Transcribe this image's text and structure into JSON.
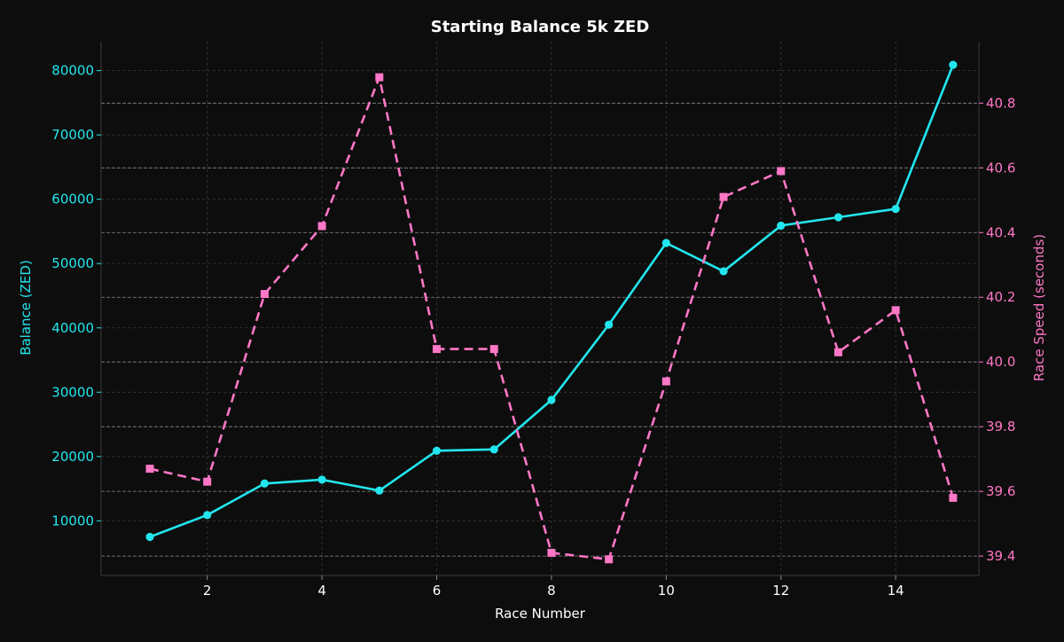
{
  "chart_data": {
    "type": "line",
    "title": "Starting Balance 5k ZED",
    "xlabel": "Race Number",
    "ylabel_left": "Balance (ZED)",
    "ylabel_right": "Race Speed (seconds)",
    "x": [
      1,
      2,
      3,
      4,
      5,
      6,
      7,
      8,
      9,
      10,
      11,
      12,
      13,
      14,
      15
    ],
    "xlim": [
      0.15,
      15.45
    ],
    "ylim_left": [
      1500,
      84500
    ],
    "ylim_right": [
      39.34,
      40.99
    ],
    "x_ticks": [
      "2",
      "4",
      "6",
      "8",
      "10",
      "12",
      "14"
    ],
    "y_left_ticks": [
      "10000",
      "20000",
      "30000",
      "40000",
      "50000",
      "60000",
      "70000",
      "80000"
    ],
    "y_right_ticks": [
      "39.4",
      "39.6",
      "39.8",
      "40.0",
      "40.2",
      "40.4",
      "40.6",
      "40.8"
    ],
    "grid": true,
    "series": [
      {
        "axis": "left",
        "color": "#22e6ee",
        "marker": "circle",
        "linestyle": "solid",
        "values": [
          7500,
          10900,
          15800,
          16400,
          14700,
          20900,
          21100,
          28800,
          40500,
          53200,
          48800,
          55900,
          57200,
          58500,
          80900
        ]
      },
      {
        "axis": "right",
        "color": "#ff77c6",
        "marker": "square",
        "linestyle": "dashed",
        "values": [
          39.67,
          39.63,
          40.21,
          40.42,
          40.88,
          40.04,
          40.04,
          39.41,
          39.39,
          39.94,
          40.51,
          40.59,
          40.03,
          40.16,
          39.58
        ]
      }
    ],
    "colors": {
      "background": "#0d0d0d",
      "text": "#ffffff",
      "left_axis": "#22e6ee",
      "right_axis": "#ff77c6",
      "grid": "#3a3a3a",
      "right_grid": "#8a8a8a",
      "spine": "#3a3a3a"
    }
  }
}
